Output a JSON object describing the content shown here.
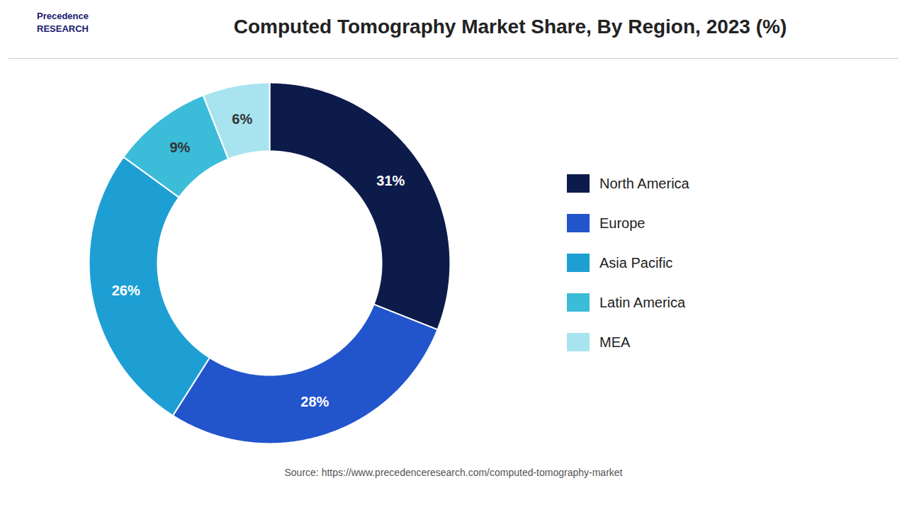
{
  "chart_data": {
    "type": "pie",
    "title": "Computed Tomography Market Share, By Region, 2023 (%)",
    "categories": [
      "North America",
      "Europe",
      "Asia Pacific",
      "Latin America",
      "MEA"
    ],
    "values": [
      31,
      28,
      26,
      9,
      6
    ],
    "value_labels": [
      "31%",
      "28%",
      "26%",
      "9%",
      "6%"
    ],
    "colors": [
      "#0d1b4b",
      "#2255cc",
      "#1e9fd4",
      "#3bbcd8",
      "#a8e4ef"
    ],
    "data_labels": true,
    "legend": "right",
    "annotations": [
      "Precedence\nRESEARCH"
    ],
    "source": "Source: https://www.precedenceresearch.com/computed-tomography-market"
  }
}
